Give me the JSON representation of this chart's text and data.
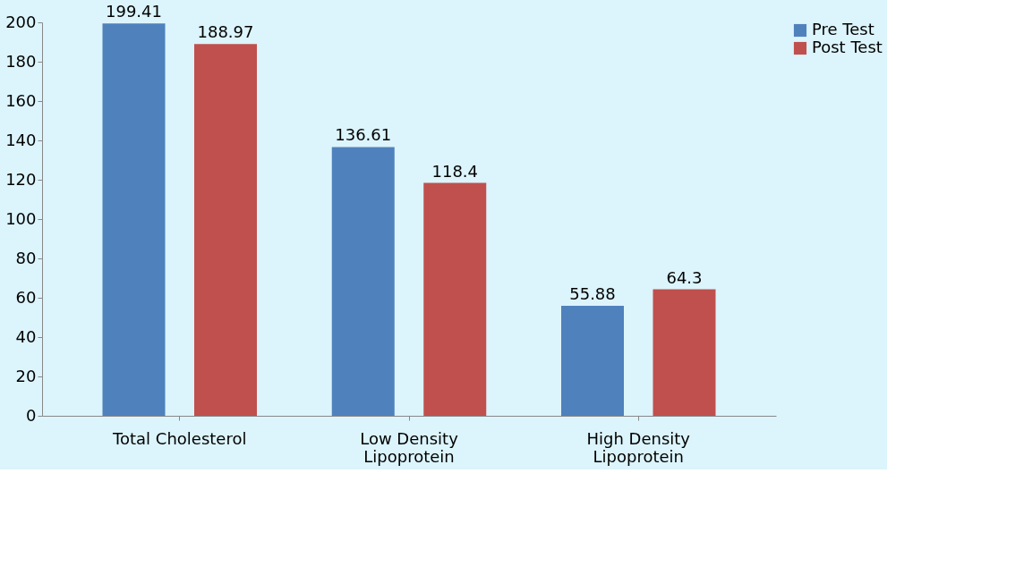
{
  "chart_data": {
    "type": "bar",
    "categories": [
      "Total Cholesterol",
      "Low Density Lipoprotein",
      "High Density Lipoprotein"
    ],
    "series": [
      {
        "name": "Pre Test",
        "color": "#4f81bd",
        "values": [
          199.41,
          136.61,
          55.88
        ]
      },
      {
        "name": "Post Test",
        "color": "#c0504d",
        "values": [
          188.97,
          118.4,
          64.3
        ]
      }
    ],
    "ylim": [
      0,
      200
    ],
    "yticks": [
      0,
      20,
      40,
      60,
      80,
      100,
      120,
      140,
      160,
      180,
      200
    ],
    "data_labels": true,
    "grid": false,
    "legend": "right"
  }
}
